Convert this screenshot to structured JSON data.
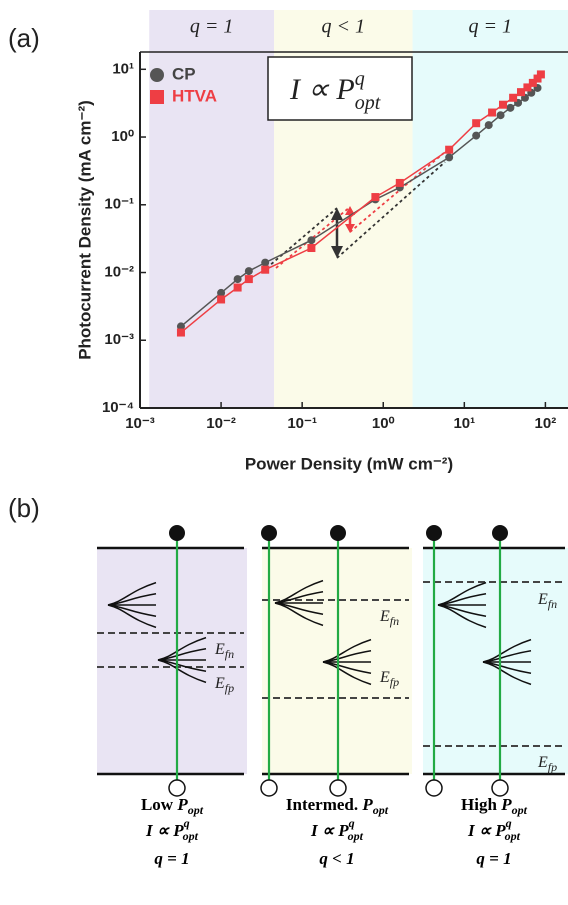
{
  "chart_data": {
    "type": "scatter",
    "label": "(a)",
    "xlabel": "Power Density (mW cm⁻²)",
    "ylabel": "Photocurrent Density (mA cm⁻²)",
    "log_x": true,
    "log_y": true,
    "xlim": [
      0.001,
      190
    ],
    "ylim": [
      0.0001,
      18
    ],
    "xticks": [
      {
        "value": 0.001,
        "label": "10⁻³"
      },
      {
        "value": 0.01,
        "label": "10⁻²"
      },
      {
        "value": 0.1,
        "label": "10⁻¹"
      },
      {
        "value": 1,
        "label": "10⁰"
      },
      {
        "value": 10,
        "label": "10¹"
      },
      {
        "value": 100,
        "label": "10²"
      }
    ],
    "yticks": [
      {
        "value": 0.0001,
        "label": "10⁻⁴"
      },
      {
        "value": 0.001,
        "label": "10⁻³"
      },
      {
        "value": 0.01,
        "label": "10⁻²"
      },
      {
        "value": 0.1,
        "label": "10⁻¹"
      },
      {
        "value": 1,
        "label": "10⁰"
      },
      {
        "value": 10,
        "label": "10¹"
      }
    ],
    "regions": [
      {
        "label": "q = 1",
        "range": [
          0.0013,
          0.045
        ],
        "color": "#e9e4f3"
      },
      {
        "label": "q < 1",
        "range": [
          0.045,
          2.3
        ],
        "color": "#fbfbe9"
      },
      {
        "label": "q = 1",
        "range": [
          2.3,
          190
        ],
        "color": "#e6fbfb"
      }
    ],
    "annotation": {
      "base": "I ∝ P",
      "sub": "opt",
      "sup": "q"
    },
    "legend": "top-left",
    "series": [
      {
        "name": "CP",
        "color": "#555555",
        "marker": "circle",
        "x": [
          0.0032,
          0.01,
          0.016,
          0.022,
          0.035,
          0.13,
          0.8,
          1.6,
          6.5,
          14,
          20,
          28,
          37,
          46,
          56,
          67,
          80
        ],
        "values": [
          0.0016,
          0.005,
          0.008,
          0.0105,
          0.014,
          0.03,
          0.12,
          0.18,
          0.5,
          1.05,
          1.5,
          2.1,
          2.7,
          3.2,
          3.8,
          4.5,
          5.3
        ]
      },
      {
        "name": "HTVA",
        "color": "#ee3e44",
        "marker": "square",
        "x": [
          0.0032,
          0.01,
          0.016,
          0.022,
          0.035,
          0.13,
          0.8,
          1.6,
          6.5,
          14,
          22,
          30,
          40,
          50,
          60,
          70,
          80,
          88
        ],
        "values": [
          0.0013,
          0.004,
          0.006,
          0.008,
          0.011,
          0.023,
          0.13,
          0.21,
          0.65,
          1.6,
          2.3,
          3.0,
          3.8,
          4.6,
          5.4,
          6.3,
          7.3,
          8.4
        ]
      }
    ]
  },
  "diagram": {
    "label": "(b)",
    "panels": [
      {
        "caption": {
          "prefix": "Low ",
          "var": "P",
          "sub": "opt"
        },
        "law": {
          "base": "I ∝ P",
          "sup": "q",
          "sub": "opt"
        },
        "q": "q = 1",
        "efn": {
          "base": "E",
          "sub": "fn"
        },
        "efp": {
          "base": "E",
          "sub": "fp"
        }
      },
      {
        "caption": {
          "prefix": "Intermed. ",
          "var": "P",
          "sub": "opt"
        },
        "law": {
          "base": "I ∝ P",
          "sup": "q",
          "sub": "opt"
        },
        "q": "q < 1",
        "efn": {
          "base": "E",
          "sub": "fn"
        },
        "efp": {
          "base": "E",
          "sub": "fp"
        }
      },
      {
        "caption": {
          "prefix": "High ",
          "var": "P",
          "sub": "opt"
        },
        "law": {
          "base": "I ∝ P",
          "sup": "q",
          "sub": "opt"
        },
        "q": "q = 1",
        "efn": {
          "base": "E",
          "sub": "fn"
        },
        "efp": {
          "base": "E",
          "sub": "fp"
        }
      }
    ]
  }
}
